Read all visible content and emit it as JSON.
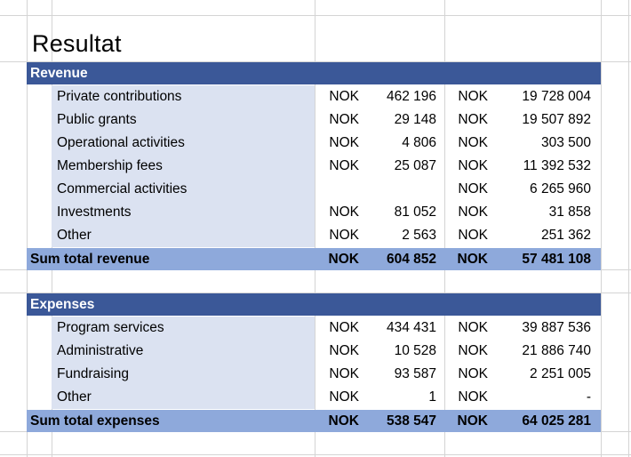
{
  "title": "Resultat",
  "revenue": {
    "header": "Revenue",
    "rows": [
      {
        "label": "Private contributions",
        "cur1": "NOK",
        "val1": "462 196",
        "cur2": "NOK",
        "val2": "19 728 004"
      },
      {
        "label": "Public grants",
        "cur1": "NOK",
        "val1": "29 148",
        "cur2": "NOK",
        "val2": "19 507 892"
      },
      {
        "label": "Operational activities",
        "cur1": "NOK",
        "val1": "4 806",
        "cur2": "NOK",
        "val2": "303 500"
      },
      {
        "label": "Membership fees",
        "cur1": "NOK",
        "val1": "25 087",
        "cur2": "NOK",
        "val2": "11 392 532"
      },
      {
        "label": "Commercial activities",
        "cur1": "",
        "val1": "",
        "cur2": "NOK",
        "val2": "6 265 960"
      },
      {
        "label": "Investments",
        "cur1": "NOK",
        "val1": "81 052",
        "cur2": "NOK",
        "val2": "31 858"
      },
      {
        "label": "Other",
        "cur1": "NOK",
        "val1": "2 563",
        "cur2": "NOK",
        "val2": "251 362"
      }
    ],
    "total": {
      "label": "Sum total revenue",
      "cur1": "NOK",
      "val1": "604 852",
      "cur2": "NOK",
      "val2": "57 481 108"
    }
  },
  "expenses": {
    "header": "Expenses",
    "rows": [
      {
        "label": "Program services",
        "cur1": "NOK",
        "val1": "434 431",
        "cur2": "NOK",
        "val2": "39 887 536"
      },
      {
        "label": "Administrative",
        "cur1": "NOK",
        "val1": "10 528",
        "cur2": "NOK",
        "val2": "21 886 740"
      },
      {
        "label": "Fundraising",
        "cur1": "NOK",
        "val1": "93 587",
        "cur2": "NOK",
        "val2": "2 251 005"
      },
      {
        "label": "Other",
        "cur1": "NOK",
        "val1": "1",
        "cur2": "NOK",
        "val2": "-"
      }
    ],
    "total": {
      "label": "Sum total expenses",
      "cur1": "NOK",
      "val1": "538 547",
      "cur2": "NOK",
      "val2": "64 025 281"
    }
  },
  "colors": {
    "header_band": "#3b5898",
    "total_band": "#8ea9db",
    "label_fill": "#dbe2f1",
    "grid": "#d4d4d4"
  }
}
